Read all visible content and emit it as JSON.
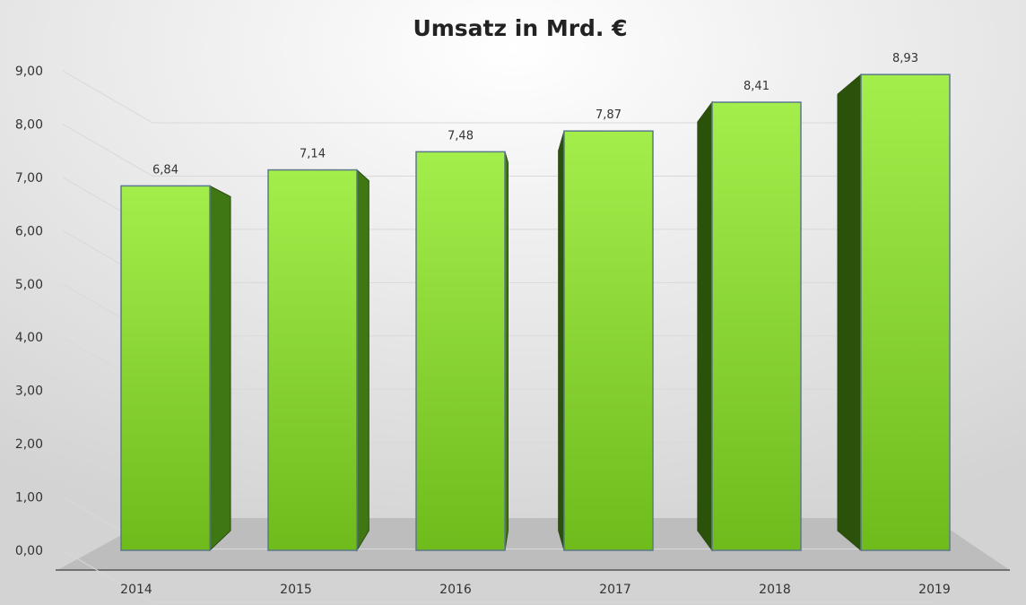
{
  "chart_data": {
    "type": "bar",
    "title": "Umsatz in Mrd.  €",
    "xlabel": "",
    "ylabel": "",
    "categories": [
      "2014",
      "2015",
      "2016",
      "2017",
      "2018",
      "2019"
    ],
    "values": [
      6.84,
      7.14,
      7.48,
      7.87,
      8.41,
      8.93
    ],
    "value_labels": [
      "6,84",
      "7,14",
      "7,48",
      "7,87",
      "8,41",
      "8,93"
    ],
    "ylim": [
      0,
      9
    ],
    "yticks": [
      0,
      1,
      2,
      3,
      4,
      5,
      6,
      7,
      8,
      9
    ],
    "ytick_labels": [
      "0,00",
      "1,00",
      "2,00",
      "3,00",
      "4,00",
      "5,00",
      "6,00",
      "7,00",
      "8,00",
      "9,00"
    ],
    "grid": true,
    "legend": "none",
    "style": "3d-perspective",
    "colors": {
      "bar_front_top": "#a4ee4c",
      "bar_front_bottom": "#6fbb1c",
      "bar_side": "#3f7713",
      "bar_side_dark": "#2b520b",
      "bar_edge": "#5a7a8a",
      "floor": "#bdbdbd",
      "gridline": "#d9d9d9"
    }
  }
}
